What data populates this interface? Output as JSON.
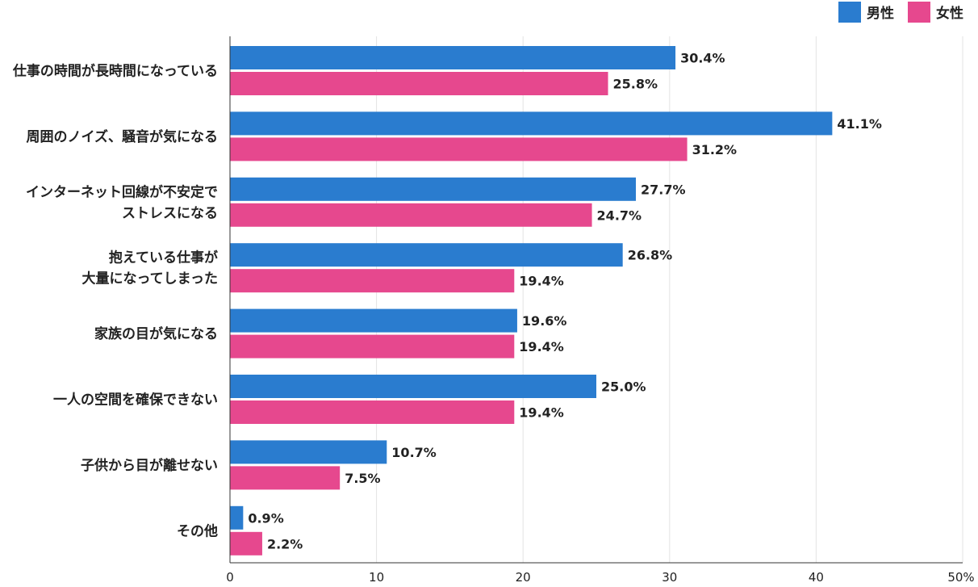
{
  "chart_data": {
    "type": "bar",
    "orientation": "horizontal",
    "categories": [
      [
        "仕事の時間が長時間になっている"
      ],
      [
        "周囲のノイズ、騒音が気になる"
      ],
      [
        "インターネット回線が不安定で",
        "ストレスになる"
      ],
      [
        "抱えている仕事が",
        "大量になってしまった"
      ],
      [
        "家族の目が気になる"
      ],
      [
        "一人の空間を確保できない"
      ],
      [
        "子供から目が離せない"
      ],
      [
        "その他"
      ]
    ],
    "series": [
      {
        "name": "男性",
        "color": "#2a7ccf",
        "values": [
          30.4,
          41.1,
          27.7,
          26.8,
          19.6,
          25.0,
          10.7,
          0.9
        ]
      },
      {
        "name": "女性",
        "color": "#e6488e",
        "values": [
          25.8,
          31.2,
          24.7,
          19.4,
          19.4,
          19.4,
          7.5,
          2.2
        ]
      }
    ],
    "value_labels": [
      [
        "30.4%",
        "41.1%",
        "27.7%",
        "26.8%",
        "19.6%",
        "25.0%",
        "10.7%",
        "0.9%"
      ],
      [
        "25.8%",
        "31.2%",
        "24.7%",
        "19.4%",
        "19.4%",
        "19.4%",
        "7.5%",
        "2.2%"
      ]
    ],
    "xlim": [
      0,
      50
    ],
    "xticks": [
      0,
      10,
      20,
      30,
      40,
      50
    ],
    "xtick_labels": [
      "0",
      "10",
      "20",
      "30",
      "40",
      "50%"
    ],
    "grid": true,
    "legend_position": "top-right"
  }
}
